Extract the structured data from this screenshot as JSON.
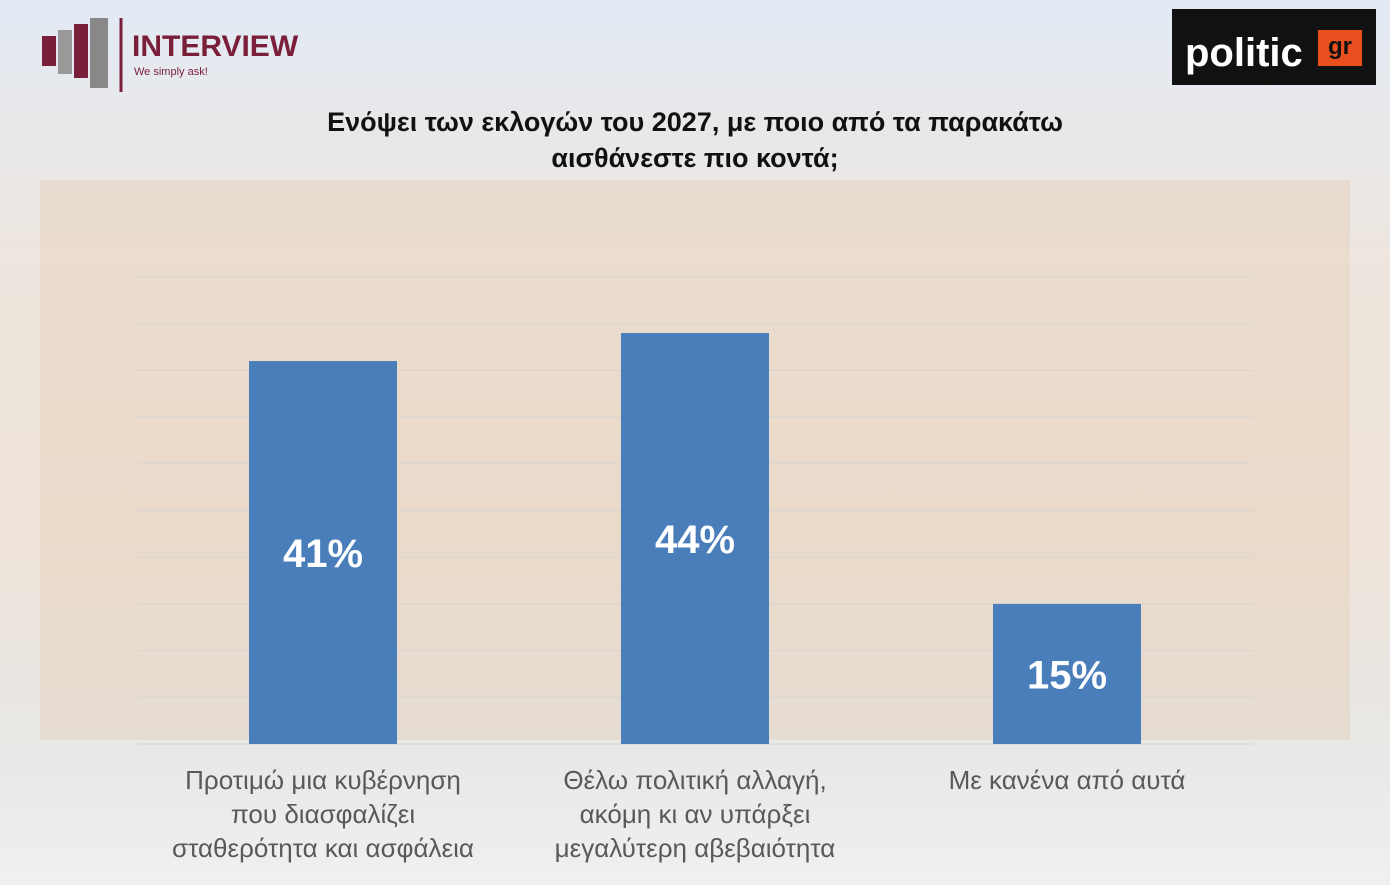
{
  "header": {
    "brand": "INTERVIEW",
    "tagline": "We simply ask!",
    "source_logo": "politic",
    "source_logo_suffix": "gr"
  },
  "chart_data": {
    "type": "bar",
    "title": "Ενόψει των εκλογών του 2027, με ποιο από τα παρακάτω\nαισθάνεστε πιο κοντά;",
    "categories": [
      "Προτιμώ μια κυβέρνηση\nπου διασφαλίζει\nσταθερότητα και ασφάλεια",
      "Θέλω πολιτική αλλαγή,\nακόμη κι αν υπάρξει\nμεγαλύτερη αβεβαιότητα",
      "Με κανένα από αυτά"
    ],
    "values": [
      41,
      44,
      15
    ],
    "value_labels": [
      "41%",
      "44%",
      "15%"
    ],
    "color": "#4a7ebb",
    "ylim": [
      0,
      50
    ],
    "yticks": [
      0,
      5,
      10,
      15,
      20,
      25,
      30,
      35,
      40,
      45,
      50
    ],
    "grid": true
  }
}
